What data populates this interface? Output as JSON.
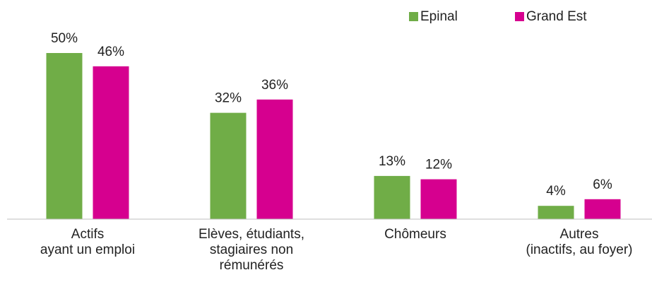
{
  "chart_data": {
    "type": "bar",
    "categories": [
      "Actifs\nayant un emploi",
      "Elèves, étudiants,\nstagiaires non\nrémunérés",
      "Chômeurs",
      "Autres\n(inactifs, au foyer)"
    ],
    "series": [
      {
        "name": "Epinal",
        "color": "#70ad47",
        "values": [
          50,
          32,
          13,
          4
        ],
        "value_labels": [
          "50%",
          "32%",
          "13%",
          "4%"
        ]
      },
      {
        "name": "Grand Est",
        "color": "#d6008f",
        "values": [
          46,
          36,
          12,
          6
        ],
        "value_labels": [
          "46%",
          "36%",
          "12%",
          "6%"
        ]
      }
    ],
    "ylim": [
      0,
      50
    ],
    "legend": "top-right"
  }
}
